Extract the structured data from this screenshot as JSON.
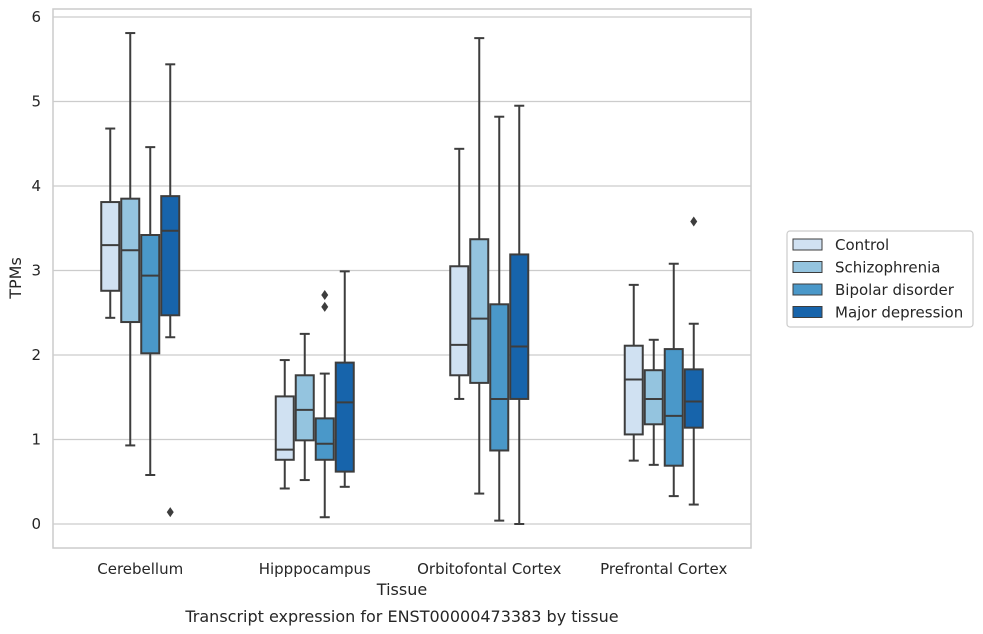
{
  "caption": "Transcript expression for ENST00000473383 by tissue",
  "chart_data": {
    "type": "box",
    "title": "",
    "xlabel": "Tissue",
    "ylabel": "TPMs",
    "ylim": [
      -0.28,
      6.1
    ],
    "yticks": [
      0,
      1,
      2,
      3,
      4,
      5,
      6
    ],
    "grid": "horizontal",
    "legend_position": "right",
    "categories": [
      "Cerebellum",
      "Hipppocampus",
      "Orbitofontal Cortex",
      "Prefrontal Cortex"
    ],
    "series": [
      {
        "name": "Control",
        "color": "#d0e1f2",
        "boxes": [
          {
            "whislo": 2.44,
            "q1": 2.76,
            "med": 3.3,
            "q3": 3.81,
            "whishi": 4.68,
            "fliers": []
          },
          {
            "whislo": 0.42,
            "q1": 0.76,
            "med": 0.88,
            "q3": 1.51,
            "whishi": 1.94,
            "fliers": []
          },
          {
            "whislo": 1.48,
            "q1": 1.76,
            "med": 2.12,
            "q3": 3.05,
            "whishi": 4.44,
            "fliers": []
          },
          {
            "whislo": 0.75,
            "q1": 1.06,
            "med": 1.71,
            "q3": 2.11,
            "whishi": 2.83,
            "fliers": []
          }
        ]
      },
      {
        "name": "Schizophrenia",
        "color": "#94c4df",
        "boxes": [
          {
            "whislo": 0.93,
            "q1": 2.39,
            "med": 3.24,
            "q3": 3.85,
            "whishi": 5.81,
            "fliers": []
          },
          {
            "whislo": 0.52,
            "q1": 0.99,
            "med": 1.35,
            "q3": 1.76,
            "whishi": 2.25,
            "fliers": []
          },
          {
            "whislo": 0.36,
            "q1": 1.67,
            "med": 2.43,
            "q3": 3.37,
            "whishi": 5.75,
            "fliers": []
          },
          {
            "whislo": 0.7,
            "q1": 1.18,
            "med": 1.48,
            "q3": 1.82,
            "whishi": 2.18,
            "fliers": []
          }
        ]
      },
      {
        "name": "Bipolar disorder",
        "color": "#4a98c9",
        "boxes": [
          {
            "whislo": 0.58,
            "q1": 2.02,
            "med": 2.94,
            "q3": 3.42,
            "whishi": 4.46,
            "fliers": []
          },
          {
            "whislo": 0.08,
            "q1": 0.76,
            "med": 0.95,
            "q3": 1.25,
            "whishi": 1.78,
            "fliers": [
              2.57,
              2.71
            ]
          },
          {
            "whislo": 0.04,
            "q1": 0.87,
            "med": 1.48,
            "q3": 2.6,
            "whishi": 4.82,
            "fliers": []
          },
          {
            "whislo": 0.33,
            "q1": 0.69,
            "med": 1.28,
            "q3": 2.07,
            "whishi": 3.08,
            "fliers": []
          }
        ]
      },
      {
        "name": "Major depression",
        "color": "#1764ab",
        "boxes": [
          {
            "whislo": 2.21,
            "q1": 2.47,
            "med": 3.47,
            "q3": 3.88,
            "whishi": 5.44,
            "fliers": [
              0.14
            ]
          },
          {
            "whislo": 0.44,
            "q1": 0.62,
            "med": 1.44,
            "q3": 1.91,
            "whishi": 2.99,
            "fliers": []
          },
          {
            "whislo": 0.0,
            "q1": 1.48,
            "med": 2.1,
            "q3": 3.19,
            "whishi": 4.95,
            "fliers": []
          },
          {
            "whislo": 0.23,
            "q1": 1.14,
            "med": 1.45,
            "q3": 1.83,
            "whishi": 2.37,
            "fliers": [
              3.58
            ]
          }
        ]
      }
    ]
  }
}
